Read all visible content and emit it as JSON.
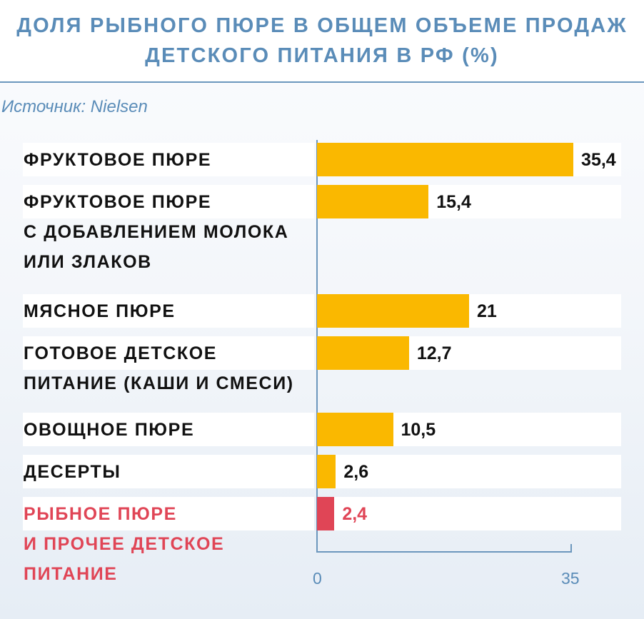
{
  "header": {
    "title_line1": "ДОЛЯ РЫБНОГО ПЮРЕ В ОБЩЕМ ОБЪЕМЕ ПРОДАЖ",
    "title_line2": "ДЕТСКОГО ПИТАНИЯ В РФ (%)"
  },
  "source": "Источник: Nielsen",
  "chart_data": {
    "type": "bar",
    "orientation": "horizontal",
    "title": "ДОЛЯ РЫБНОГО ПЮРЕ В ОБЩЕМ ОБЪЕМЕ ПРОДАЖ ДЕТСКОГО ПИТАНИЯ В РФ (%)",
    "xlim": [
      0,
      35
    ],
    "ticks": [
      "0",
      "35"
    ],
    "categories": [
      {
        "lines": [
          "ФРУКТОВОЕ ПЮРЕ"
        ],
        "value": 35.4,
        "label": "35,4",
        "highlight": false
      },
      {
        "lines": [
          "ФРУКТОВОЕ ПЮРЕ",
          "С ДОБАВЛЕНИЕМ МОЛОКА",
          "ИЛИ ЗЛАКОВ"
        ],
        "value": 15.4,
        "label": "15,4",
        "highlight": false
      },
      {
        "lines": [
          "МЯСНОЕ ПЮРЕ"
        ],
        "value": 21,
        "label": "21",
        "highlight": false
      },
      {
        "lines": [
          "ГОТОВОЕ ДЕТСКОЕ",
          "ПИТАНИЕ (КАШИ И СМЕСИ)"
        ],
        "value": 12.7,
        "label": "12,7",
        "highlight": false
      },
      {
        "lines": [
          "ОВОЩНОЕ ПЮРЕ"
        ],
        "value": 10.5,
        "label": "10,5",
        "highlight": false
      },
      {
        "lines": [
          "ДЕСЕРТЫ"
        ],
        "value": 2.6,
        "label": "2,6",
        "highlight": false
      },
      {
        "lines": [
          "РЫБНОЕ ПЮРЕ",
          "И ПРОЧЕЕ ДЕТСКОЕ",
          "ПИТАНИЕ"
        ],
        "value": 2.4,
        "label": "2,4",
        "highlight": true
      }
    ],
    "colors": {
      "default": "#fab800",
      "highlight": "#e04556"
    }
  }
}
